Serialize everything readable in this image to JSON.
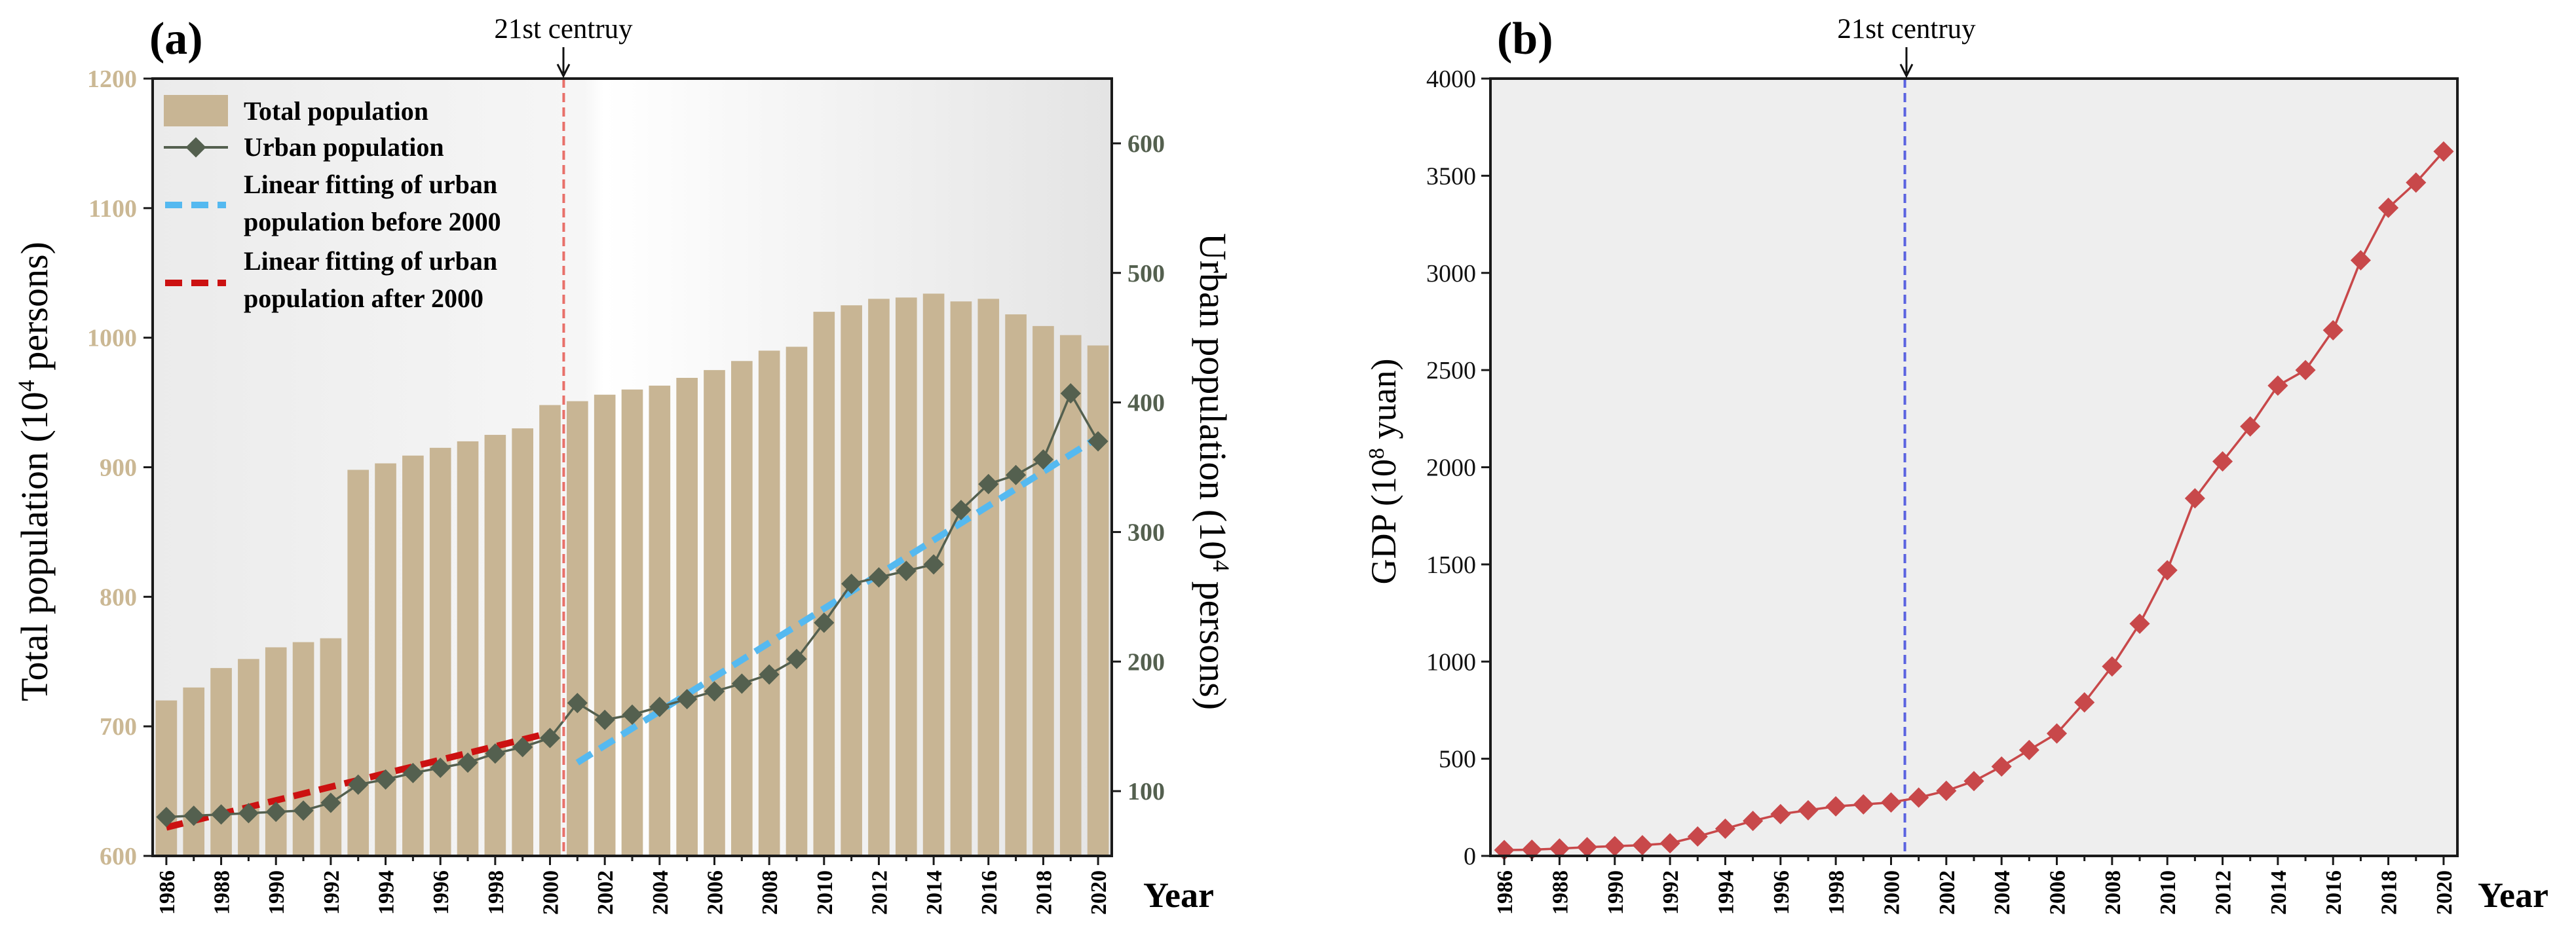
{
  "chart_data": [
    {
      "type": "bar+line",
      "panel_label": "(a)",
      "annotation": "21st centruy",
      "annotation_x": 2000.5,
      "xlabel": "Year",
      "ylabel_left": "Total population (10",
      "ylabel_left_sup": "4",
      "ylabel_left_tail": " persons)",
      "ylabel_right": "Urban population (10",
      "ylabel_right_sup": "4",
      "ylabel_right_tail": " persons)",
      "ylim_left": [
        600,
        1200
      ],
      "ylim_right": [
        50,
        650
      ],
      "yticks_left": [
        600,
        700,
        800,
        900,
        1000,
        1100,
        1200
      ],
      "yticks_right": [
        100,
        200,
        300,
        400,
        500,
        600
      ],
      "years": [
        1986,
        1987,
        1988,
        1989,
        1990,
        1991,
        1992,
        1993,
        1994,
        1995,
        1996,
        1997,
        1998,
        1999,
        2000,
        2001,
        2002,
        2003,
        2004,
        2005,
        2006,
        2007,
        2008,
        2009,
        2010,
        2011,
        2012,
        2013,
        2014,
        2015,
        2016,
        2017,
        2018,
        2019,
        2020
      ],
      "xtick_labels": [
        "1986",
        "1988",
        "1990",
        "1992",
        "1994",
        "1996",
        "1998",
        "2000",
        "2002",
        "2004",
        "2006",
        "2008",
        "2010",
        "2012",
        "2014",
        "2016",
        "2018",
        "2020"
      ],
      "series": [
        {
          "name": "Total population",
          "axis": "left",
          "kind": "bar",
          "color": "#c8b594",
          "values": [
            720,
            730,
            745,
            752,
            761,
            765,
            768,
            898,
            903,
            909,
            915,
            920,
            925,
            930,
            948,
            951,
            956,
            960,
            963,
            969,
            975,
            982,
            990,
            993,
            1020,
            1025,
            1030,
            1031,
            1034,
            1028,
            1030,
            1018,
            1009,
            1002,
            994
          ]
        },
        {
          "name": "Urban population",
          "axis": "right",
          "kind": "line",
          "color": "#54604f",
          "values": [
            80,
            81,
            82,
            83,
            84,
            85,
            91,
            105,
            109,
            114,
            118,
            122,
            129,
            134,
            141,
            168,
            155,
            159,
            165,
            171,
            177,
            183,
            190,
            202,
            230,
            260,
            265,
            270,
            275,
            317,
            337,
            344,
            356,
            407,
            370
          ]
        },
        {
          "name": "Linear fitting of urban population before 2000",
          "label_lines": [
            "Linear fitting of urban",
            "population before 2000"
          ],
          "axis": "right",
          "kind": "fit",
          "color": "#55b9f0",
          "x": [
            2001,
            2020
          ],
          "values": [
            122,
            373
          ]
        },
        {
          "name": "Linear fitting of urban population after 2000",
          "label_lines": [
            "Linear fitting of urban",
            "population after 2000"
          ],
          "axis": "right",
          "kind": "fit",
          "color": "#cc1111",
          "x": [
            1986,
            2000
          ],
          "values": [
            72,
            145
          ]
        }
      ],
      "colors": {
        "cutline": "#e8706a",
        "tick_left": "#cbb894",
        "tick_right": "#54604f"
      }
    },
    {
      "type": "line",
      "panel_label": "(b)",
      "annotation": "21st centruy",
      "annotation_x": 2000.5,
      "xlabel": "Year",
      "ylabel": "GDP (10",
      "ylabel_sup": "8",
      "ylabel_tail": " yuan)",
      "ylim": [
        0,
        4000
      ],
      "yticks": [
        0,
        500,
        1000,
        1500,
        2000,
        2500,
        3000,
        3500,
        4000
      ],
      "years": [
        1986,
        1987,
        1988,
        1989,
        1990,
        1991,
        1992,
        1993,
        1994,
        1995,
        1996,
        1997,
        1998,
        1999,
        2000,
        2001,
        2002,
        2003,
        2004,
        2005,
        2006,
        2007,
        2008,
        2009,
        2010,
        2011,
        2012,
        2013,
        2014,
        2015,
        2016,
        2017,
        2018,
        2019,
        2020
      ],
      "xtick_labels": [
        "1986",
        "1988",
        "1990",
        "1992",
        "1994",
        "1996",
        "1998",
        "2000",
        "2002",
        "2004",
        "2006",
        "2008",
        "2010",
        "2012",
        "2014",
        "2016",
        "2018",
        "2020"
      ],
      "series": [
        {
          "name": "GDP",
          "color": "#c8484a",
          "values": [
            30,
            32,
            38,
            45,
            50,
            55,
            65,
            100,
            140,
            180,
            215,
            235,
            255,
            265,
            275,
            300,
            335,
            385,
            460,
            545,
            630,
            790,
            975,
            1195,
            1470,
            1840,
            2030,
            2210,
            2420,
            2500,
            2705,
            3065,
            3335,
            3465,
            3625
          ]
        }
      ],
      "colors": {
        "cutline": "#5b63e0"
      }
    }
  ]
}
